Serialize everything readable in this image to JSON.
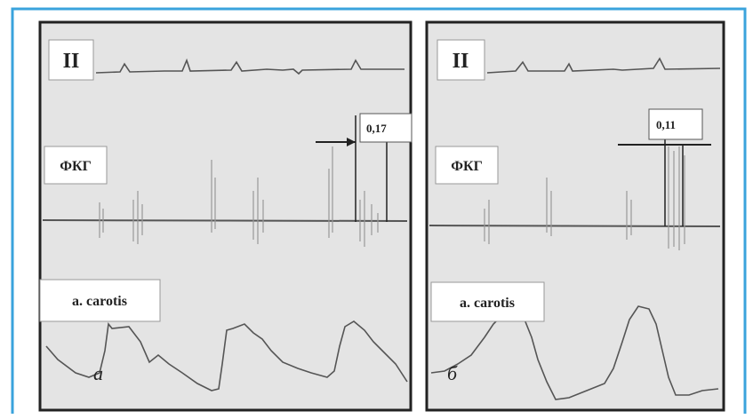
{
  "panels": [
    {
      "lead": "II",
      "pcg": "ФКГ",
      "carotid": "a. carotis",
      "interval": "0,17",
      "letter": "а"
    },
    {
      "lead": "II",
      "pcg": "ФКГ",
      "carotid": "a. carotis",
      "interval": "0,11",
      "letter": "б"
    }
  ]
}
